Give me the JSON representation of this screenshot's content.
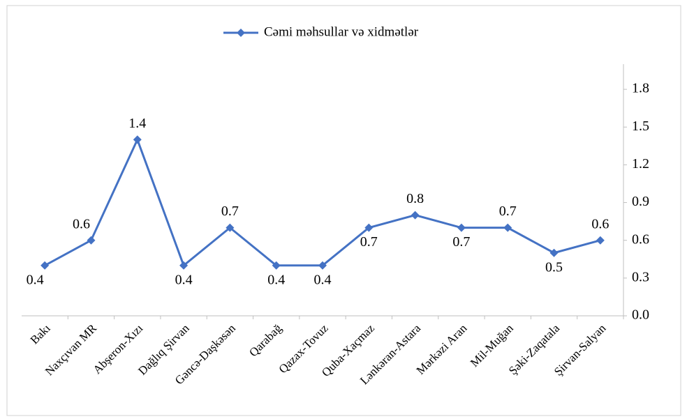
{
  "chart_data": {
    "type": "line",
    "categories": [
      "Bakı",
      "Naxçıvan MR",
      "Abşeron-Xızı",
      "Dağlıq Şirvan",
      "Gəncə-Daşkəsən",
      "Qarabağ",
      "Qazax-Tovuz",
      "Quba-Xaçmaz",
      "Lənkəran-Astara",
      "Mərkəzi Aran",
      "Mil-Muğan",
      "Şəki-Zaqatala",
      "Şirvan-Salyan"
    ],
    "series": [
      {
        "name": "Cəmi məhsullar və xidmətlər",
        "color": "#4472c4",
        "values": [
          0.4,
          0.6,
          1.4,
          0.4,
          0.7,
          0.4,
          0.4,
          0.7,
          0.8,
          0.7,
          0.7,
          0.5,
          0.6
        ]
      }
    ],
    "ylim": [
      0,
      2.0
    ],
    "yticks": [
      {
        "value": 0,
        "label": "0.0"
      },
      0.3,
      0.6,
      0.9,
      1.2,
      1.5,
      1.8
    ],
    "y_axis_side": "right",
    "legend": "top",
    "data_labels": true
  }
}
